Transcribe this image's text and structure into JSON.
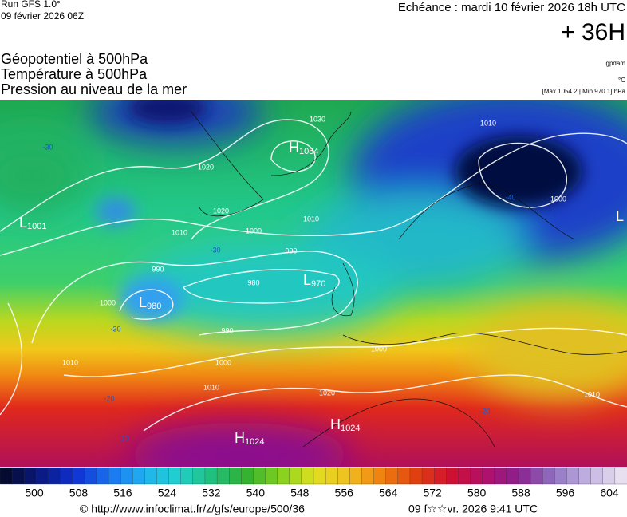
{
  "header": {
    "run": "Run GFS 1.0°",
    "run_date": "09 février 2026 06Z",
    "valid": "Echéance : mardi 10 février 2026 18h UTC",
    "lead": "+ 36H",
    "fields": [
      "Géopotentiel à 500hPa",
      "Température à 500hPa",
      "Pression au niveau de la mer"
    ],
    "units": [
      "gpdam",
      "°C",
      "[Max 1054.2 | Min 970.1] hPa"
    ]
  },
  "map": {
    "centers": [
      {
        "letter": "H",
        "value": "1054"
      },
      {
        "letter": "L",
        "value": "1001"
      },
      {
        "letter": "L",
        "value": "980"
      },
      {
        "letter": "L",
        "value": "970"
      },
      {
        "letter": "H",
        "value": "1024"
      },
      {
        "letter": "H",
        "value": "1024"
      },
      {
        "letter": "L"
      }
    ],
    "isobar_labels": [
      1030,
      1020,
      1020,
      1010,
      1000,
      990,
      990,
      980,
      1000,
      990,
      1010,
      1000,
      1010,
      1020,
      1010,
      1010,
      1000,
      1010,
      1000
    ],
    "temperature_labels": [
      -30,
      -30,
      -30,
      -40,
      -20,
      -20,
      -10
    ]
  },
  "colorbar": {
    "labels": [
      500,
      508,
      516,
      524,
      532,
      540,
      548,
      556,
      564,
      572,
      580,
      588,
      596,
      604
    ]
  },
  "footer": {
    "source": "© http://www.infoclimat.fr/z/gfs/europe/500/36",
    "generated": "09 f☆☆vr. 2026  9:41 UTC"
  }
}
